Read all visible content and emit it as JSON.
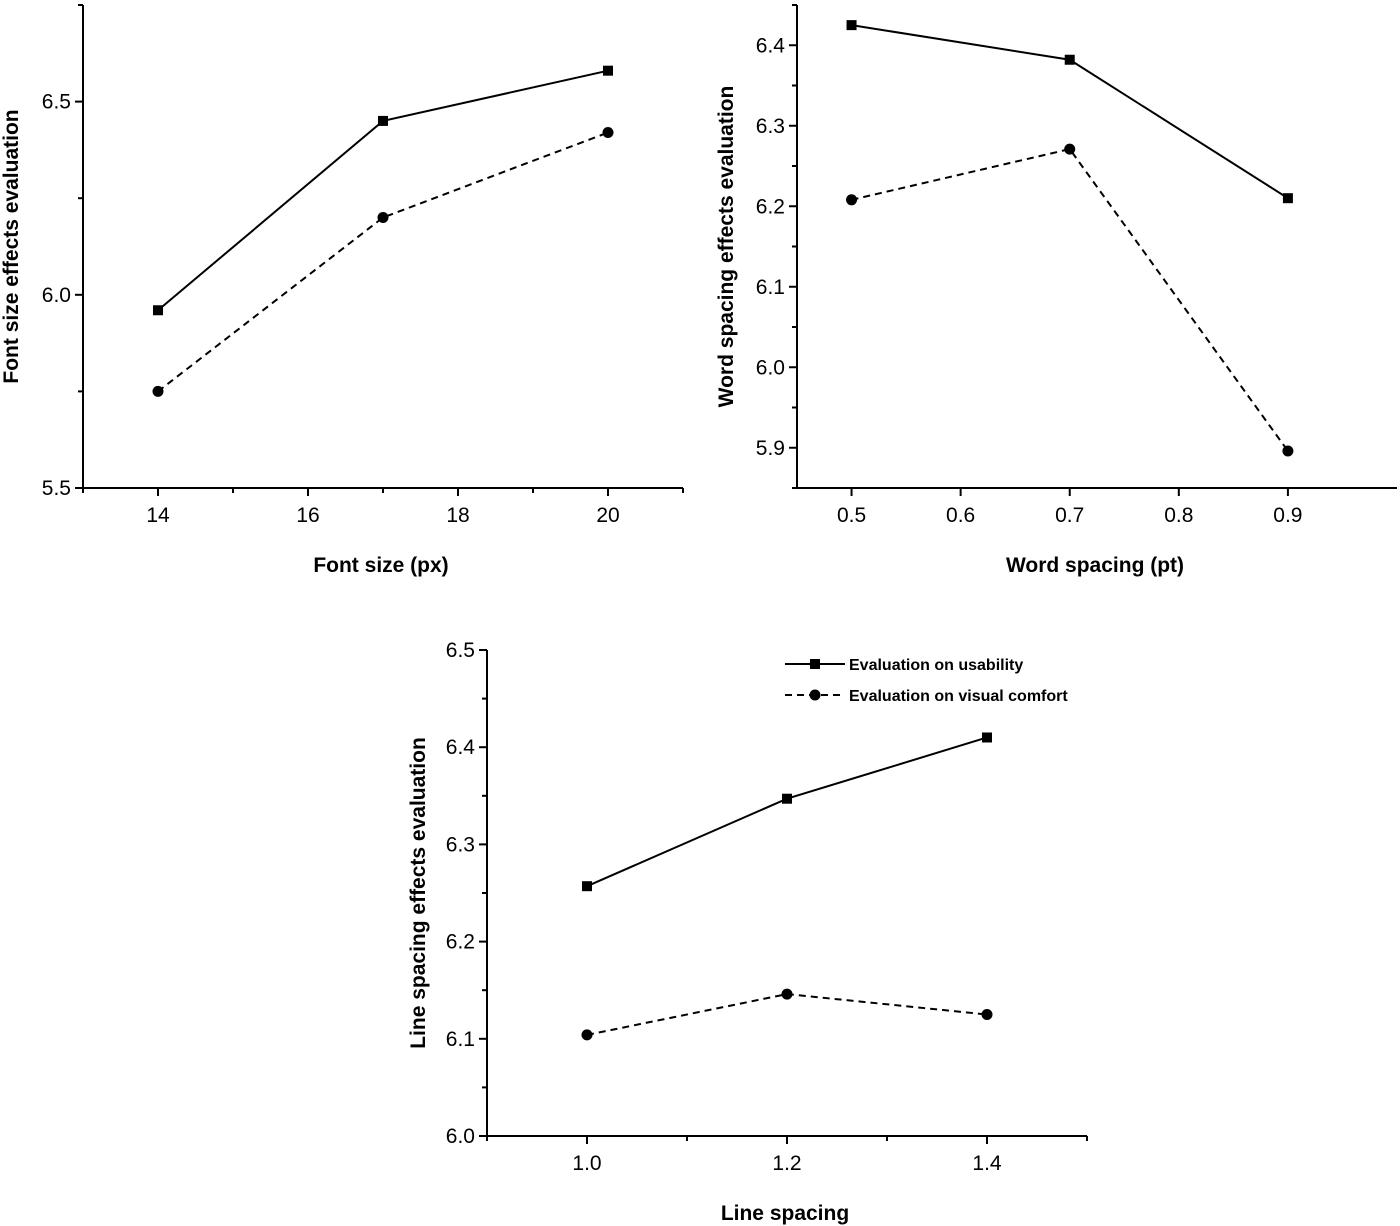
{
  "chart_data": [
    {
      "type": "line",
      "xlabel": "Font size (px)",
      "ylabel": "Font size effects evaluation",
      "xlim": [
        13,
        21
      ],
      "ylim": [
        5.5,
        6.75
      ],
      "xticks": [
        14,
        16,
        18,
        20
      ],
      "yticks": [
        5.5,
        6.0,
        6.5
      ],
      "x_decimals": 0,
      "y_decimals": 1,
      "x": [
        14,
        17,
        20
      ],
      "series": [
        {
          "values": [
            5.96,
            6.45,
            6.58
          ],
          "style": "solid",
          "marker": "square"
        },
        {
          "values": [
            5.75,
            6.2,
            6.42
          ],
          "style": "dashed",
          "marker": "circle"
        }
      ]
    },
    {
      "type": "line",
      "xlabel": "Word spacing (pt)",
      "ylabel": "Word spacing effects evaluation",
      "xlim": [
        0.45,
        1.0
      ],
      "ylim": [
        5.85,
        6.45
      ],
      "xticks": [
        0.5,
        0.6,
        0.7,
        0.8,
        0.9
      ],
      "yticks": [
        5.9,
        6.0,
        6.1,
        6.2,
        6.3,
        6.4
      ],
      "x_decimals": 1,
      "y_decimals": 1,
      "x": [
        0.5,
        0.7,
        0.9
      ],
      "series": [
        {
          "values": [
            6.425,
            6.382,
            6.21
          ],
          "style": "solid",
          "marker": "square"
        },
        {
          "values": [
            6.208,
            6.271,
            5.896
          ],
          "style": "dashed",
          "marker": "circle"
        }
      ]
    },
    {
      "type": "line",
      "xlabel": "Line spacing",
      "ylabel": "Line spacing effects evaluation",
      "xlim": [
        0.9,
        1.5
      ],
      "ylim": [
        6.0,
        6.5
      ],
      "xticks": [
        1.0,
        1.2,
        1.4
      ],
      "yticks": [
        6.0,
        6.1,
        6.2,
        6.3,
        6.4,
        6.5
      ],
      "x_decimals": 1,
      "y_decimals": 1,
      "legend": "top-right",
      "x": [
        1.0,
        1.2,
        1.4
      ],
      "series": [
        {
          "name": "Evaluation on usability",
          "values": [
            6.257,
            6.347,
            6.41
          ],
          "style": "solid",
          "marker": "square"
        },
        {
          "name": "Evaluation on visual comfort",
          "values": [
            6.104,
            6.146,
            6.125
          ],
          "style": "dashed",
          "marker": "circle"
        }
      ]
    }
  ]
}
